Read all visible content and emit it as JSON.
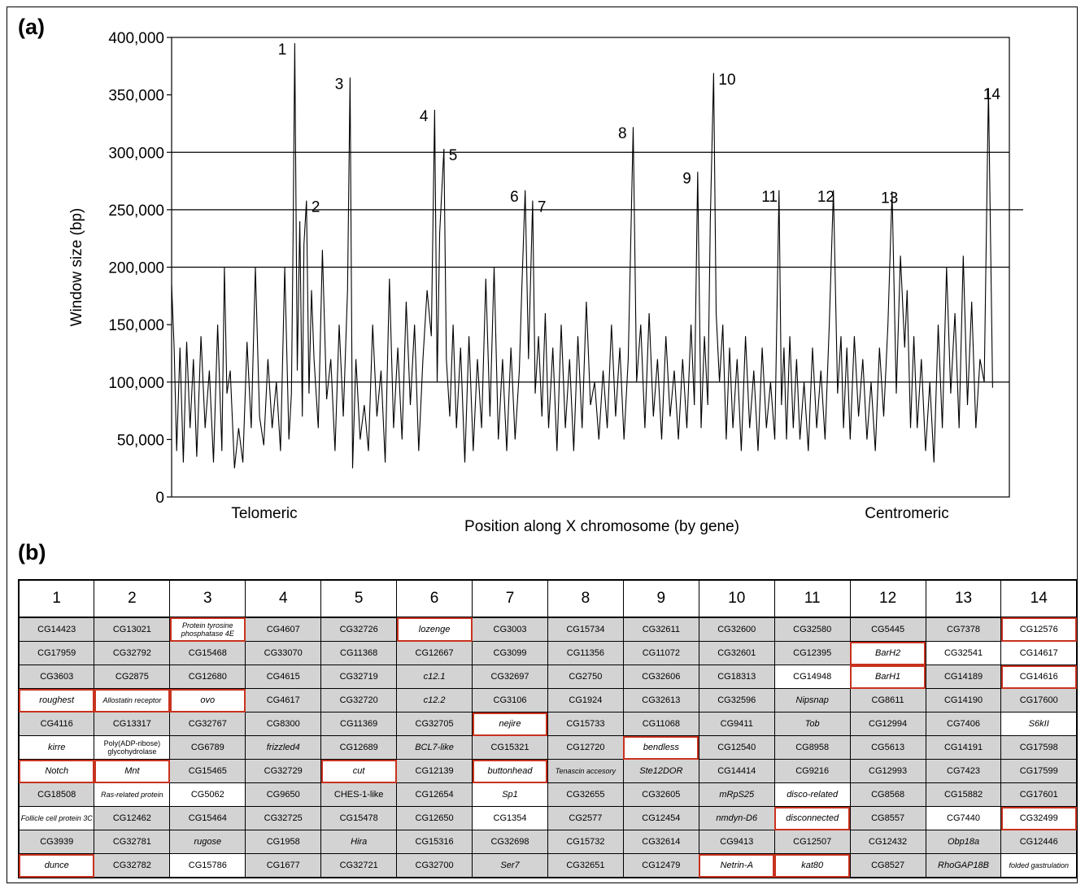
{
  "panel_a_label": "(a)",
  "panel_b_label": "(b)",
  "chart_data": {
    "type": "line",
    "xlabel": "Position along X chromosome (by gene)",
    "ylabel": "Window size (bp)",
    "ylim": [
      0,
      400000
    ],
    "yticks": [
      "0",
      "50,000",
      "100,000",
      "150,000",
      "200,000",
      "250,000",
      "300,000",
      "350,000",
      "400,000"
    ],
    "ytick_values": [
      0,
      50000,
      100000,
      150000,
      200000,
      250000,
      300000,
      350000,
      400000
    ],
    "gridlines": [
      100000,
      200000,
      250000,
      300000
    ],
    "x_end_labels": {
      "left": "Telomeric",
      "right": "Centromeric"
    },
    "xlim": [
      0,
      1000
    ],
    "peaks": [
      {
        "label": "1",
        "x": 145,
        "y": 395000
      },
      {
        "label": "2",
        "x": 161,
        "y": 258000
      },
      {
        "label": "3",
        "x": 213,
        "y": 365000
      },
      {
        "label": "4",
        "x": 314,
        "y": 337000
      },
      {
        "label": "5",
        "x": 325,
        "y": 303000
      },
      {
        "label": "6",
        "x": 422,
        "y": 267000
      },
      {
        "label": "7",
        "x": 431,
        "y": 258000
      },
      {
        "label": "8",
        "x": 551,
        "y": 322000
      },
      {
        "label": "9",
        "x": 628,
        "y": 283000
      },
      {
        "label": "10",
        "x": 647,
        "y": 369000
      },
      {
        "label": "11",
        "x": 731,
        "y": 267000
      },
      {
        "label": "12",
        "x": 799,
        "y": 267000
      },
      {
        "label": "13",
        "x": 875,
        "y": 266000
      },
      {
        "label": "14",
        "x": 997,
        "y": 356000
      }
    ],
    "profile_x": [
      0,
      3,
      6,
      10,
      14,
      18,
      22,
      26,
      30,
      35,
      40,
      45,
      50,
      55,
      60,
      63,
      66,
      70,
      75,
      80,
      85,
      90,
      95,
      100,
      105,
      110,
      115,
      120,
      125,
      130,
      135,
      140,
      143,
      145,
      147,
      150,
      153,
      156,
      158,
      161,
      164,
      167,
      170,
      175,
      180,
      185,
      190,
      195,
      200,
      205,
      210,
      213,
      216,
      220,
      225,
      230,
      235,
      240,
      245,
      250,
      255,
      260,
      265,
      270,
      275,
      280,
      285,
      290,
      295,
      300,
      305,
      310,
      314,
      317,
      320,
      325,
      328,
      332,
      336,
      340,
      345,
      350,
      355,
      360,
      365,
      370,
      375,
      380,
      385,
      390,
      395,
      400,
      405,
      410,
      415,
      418,
      422,
      426,
      431,
      434,
      438,
      442,
      446,
      450,
      455,
      460,
      465,
      470,
      475,
      480,
      485,
      490,
      495,
      500,
      505,
      510,
      515,
      520,
      525,
      530,
      535,
      540,
      545,
      551,
      555,
      560,
      565,
      570,
      575,
      580,
      585,
      590,
      595,
      600,
      605,
      610,
      615,
      620,
      624,
      628,
      632,
      636,
      640,
      643,
      647,
      650,
      654,
      658,
      662,
      666,
      670,
      675,
      680,
      685,
      690,
      695,
      700,
      705,
      710,
      715,
      720,
      725,
      728,
      731,
      734,
      738,
      742,
      746,
      750,
      755,
      760,
      765,
      770,
      775,
      780,
      785,
      790,
      795,
      799,
      802,
      806,
      810,
      815,
      820,
      825,
      830,
      835,
      840,
      845,
      850,
      855,
      860,
      865,
      870,
      875,
      878,
      882,
      886,
      890,
      895,
      900,
      905,
      910,
      915,
      920,
      925,
      930,
      935,
      940,
      945,
      950,
      955,
      960,
      965,
      970,
      975,
      980,
      985,
      988,
      992,
      995,
      997,
      1000
    ],
    "profile_y": [
      185000,
      130000,
      40000,
      130000,
      30000,
      135000,
      60000,
      120000,
      35000,
      140000,
      60000,
      110000,
      30000,
      150000,
      40000,
      200000,
      90000,
      110000,
      25000,
      60000,
      30000,
      135000,
      60000,
      200000,
      70000,
      45000,
      120000,
      60000,
      100000,
      40000,
      200000,
      50000,
      90000,
      230000,
      395000,
      110000,
      240000,
      70000,
      220000,
      258000,
      90000,
      180000,
      120000,
      60000,
      215000,
      85000,
      120000,
      40000,
      150000,
      70000,
      180000,
      365000,
      25000,
      120000,
      50000,
      80000,
      40000,
      150000,
      70000,
      110000,
      30000,
      190000,
      60000,
      130000,
      50000,
      170000,
      80000,
      150000,
      40000,
      120000,
      180000,
      140000,
      337000,
      100000,
      230000,
      303000,
      120000,
      70000,
      150000,
      60000,
      130000,
      30000,
      140000,
      40000,
      120000,
      60000,
      190000,
      70000,
      200000,
      50000,
      120000,
      40000,
      130000,
      50000,
      110000,
      180000,
      267000,
      120000,
      258000,
      90000,
      140000,
      70000,
      160000,
      60000,
      130000,
      40000,
      150000,
      60000,
      120000,
      40000,
      140000,
      60000,
      170000,
      80000,
      100000,
      50000,
      110000,
      60000,
      150000,
      70000,
      130000,
      50000,
      120000,
      322000,
      100000,
      150000,
      60000,
      160000,
      70000,
      120000,
      50000,
      140000,
      70000,
      110000,
      50000,
      120000,
      60000,
      150000,
      80000,
      283000,
      60000,
      140000,
      80000,
      240000,
      369000,
      160000,
      100000,
      150000,
      50000,
      130000,
      60000,
      120000,
      40000,
      140000,
      60000,
      110000,
      40000,
      130000,
      60000,
      100000,
      50000,
      267000,
      80000,
      130000,
      50000,
      140000,
      60000,
      120000,
      50000,
      100000,
      40000,
      130000,
      60000,
      110000,
      50000,
      150000,
      267000,
      90000,
      140000,
      60000,
      130000,
      50000,
      140000,
      70000,
      120000,
      50000,
      100000,
      40000,
      130000,
      70000,
      150000,
      266000,
      90000,
      210000,
      130000,
      180000,
      60000,
      140000,
      60000,
      120000,
      40000,
      100000,
      30000,
      150000,
      60000,
      200000,
      90000,
      160000,
      60000,
      210000,
      80000,
      170000,
      60000,
      120000,
      100000,
      356000,
      95000
    ]
  },
  "table": {
    "headers": [
      "1",
      "2",
      "3",
      "4",
      "5",
      "6",
      "7",
      "8",
      "9",
      "10",
      "11",
      "12",
      "13",
      "14"
    ],
    "rows": [
      [
        "CG14423",
        "CG13021",
        "Protein tyrosine phosphatase 4E",
        "CG4607",
        "CG32726",
        "lozenge",
        "CG3003",
        "CG15734",
        "CG32611",
        "CG32600",
        "CG32580",
        "CG5445",
        "CG7378",
        "CG12576"
      ],
      [
        "CG17959",
        "CG32792",
        "CG15468",
        "CG33070",
        "CG11368",
        "CG12667",
        "CG3099",
        "CG11356",
        "CG11072",
        "CG32601",
        "CG12395",
        "BarH2",
        "CG32541",
        "CG14617"
      ],
      [
        "CG3603",
        "CG2875",
        "CG12680",
        "CG4615",
        "CG32719",
        "c12.1",
        "CG32697",
        "CG2750",
        "CG32606",
        "CG18313",
        "CG14948",
        "BarH1",
        "CG14189",
        "CG14616"
      ],
      [
        "roughest",
        "Allostatin receptor",
        "ovo",
        "CG4617",
        "CG32720",
        "c12.2",
        "CG3106",
        "CG1924",
        "CG32613",
        "CG32596",
        "Nipsnap",
        "CG8611",
        "CG14190",
        "CG17600"
      ],
      [
        "CG4116",
        "CG13317",
        "CG32767",
        "CG8300",
        "CG11369",
        "CG32705",
        "nejire",
        "CG15733",
        "CG11068",
        "CG9411",
        "Tob",
        "CG12994",
        "CG7406",
        "S6kII"
      ],
      [
        "kirre",
        "Poly(ADP-ribose) glycohydrolase",
        "CG6789",
        "frizzled4",
        "CG12689",
        "BCL7-like",
        "CG15321",
        "CG12720",
        "bendless",
        "CG12540",
        "CG8958",
        "CG5613",
        "CG14191",
        "CG17598"
      ],
      [
        "Notch",
        "Mnt",
        "CG15465",
        "CG32729",
        "cut",
        "CG12139",
        "buttonhead",
        "Tenascin accesory",
        "Ste12DOR",
        "CG14414",
        "CG9216",
        "CG12993",
        "CG7423",
        "CG17599"
      ],
      [
        "CG18508",
        "Ras-related protein",
        "CG5062",
        "CG9650",
        "CHES-1-like",
        "CG12654",
        "Sp1",
        "CG32655",
        "CG32605",
        "mRpS25",
        "disco-related",
        "CG8568",
        "CG15882",
        "CG17601"
      ],
      [
        "Follicle cell protein 3C",
        "CG12462",
        "CG15464",
        "CG32725",
        "CG15478",
        "CG12650",
        "CG1354",
        "CG2577",
        "CG12454",
        "nmdyn-D6",
        "disconnected",
        "CG8557",
        "CG7440",
        "CG32499"
      ],
      [
        "CG3939",
        "CG32781",
        "rugose",
        "CG1958",
        "Hira",
        "CG15316",
        "CG32698",
        "CG15732",
        "CG32614",
        "CG9413",
        "CG12507",
        "CG12432",
        "Obp18a",
        "CG12446"
      ],
      [
        "dunce",
        "CG32782",
        "CG15786",
        "CG1677",
        "CG32721",
        "CG32700",
        "Ser7",
        "CG32651",
        "CG12479",
        "Netrin-A",
        "kat80",
        "CG8527",
        "RhoGAP18B",
        "folded gastrulation"
      ]
    ],
    "cell_style": [
      [
        "s",
        "s",
        "rs",
        "s",
        "s",
        "r",
        "s",
        "s",
        "s",
        "s",
        "s",
        "s",
        "s",
        "r"
      ],
      [
        "s",
        "s",
        "s",
        "s",
        "s",
        "s",
        "s",
        "s",
        "s",
        "s",
        "s",
        "r",
        "w",
        "w"
      ],
      [
        "s",
        "s",
        "s",
        "s",
        "s",
        "s",
        "s",
        "s",
        "s",
        "s",
        "w",
        "r",
        "s",
        "r"
      ],
      [
        "r",
        "r",
        "r",
        "s",
        "s",
        "s",
        "s",
        "s",
        "s",
        "s",
        "s",
        "s",
        "s",
        "s"
      ],
      [
        "s",
        "s",
        "s",
        "s",
        "s",
        "s",
        "r",
        "s",
        "s",
        "s",
        "s",
        "s",
        "s",
        "w"
      ],
      [
        "w",
        "w",
        "s",
        "s",
        "s",
        "s",
        "s",
        "s",
        "r",
        "s",
        "s",
        "s",
        "s",
        "s"
      ],
      [
        "r",
        "r",
        "s",
        "s",
        "r",
        "s",
        "r",
        "s",
        "s",
        "s",
        "s",
        "s",
        "s",
        "s"
      ],
      [
        "s",
        "w",
        "w",
        "s",
        "s",
        "s",
        "w",
        "s",
        "s",
        "s",
        "w",
        "s",
        "s",
        "s"
      ],
      [
        "w",
        "s",
        "s",
        "s",
        "s",
        "s",
        "w",
        "s",
        "s",
        "s",
        "r",
        "s",
        "w",
        "r"
      ],
      [
        "s",
        "s",
        "s",
        "s",
        "s",
        "s",
        "s",
        "s",
        "s",
        "s",
        "s",
        "s",
        "s",
        "s"
      ],
      [
        "r",
        "s",
        "w",
        "s",
        "s",
        "s",
        "s",
        "s",
        "s",
        "r",
        "r",
        "s",
        "s",
        "w"
      ]
    ],
    "italic_names": [
      "Protein tyrosine phosphatase 4E",
      "lozenge",
      "BarH2",
      "BarH1",
      "c12.1",
      "c12.2",
      "roughest",
      "Allostatin receptor",
      "ovo",
      "Nipsnap",
      "nejire",
      "Tob",
      "S6kII",
      "kirre",
      "frizzled4",
      "BCL7-like",
      "bendless",
      "Notch",
      "Mnt",
      "cut",
      "buttonhead",
      "Tenascin accesory",
      "Ste12DOR",
      "Ras-related protein",
      "Sp1",
      "mRpS25",
      "disco-related",
      "Follicle cell protein 3C",
      "nmdyn-D6",
      "disconnected",
      "rugose",
      "Hira",
      "Obp18a",
      "dunce",
      "Ser7",
      "Netrin-A",
      "kat80",
      "RhoGAP18B",
      "folded gastrulation"
    ]
  }
}
